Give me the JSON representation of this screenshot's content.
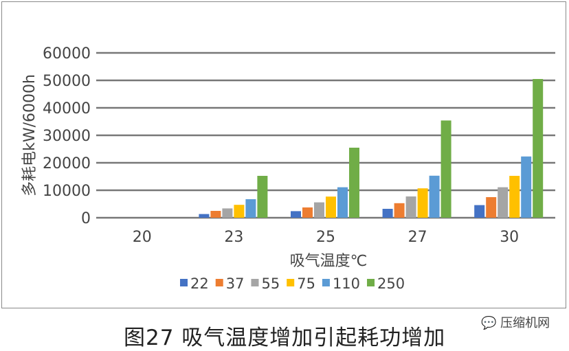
{
  "chart_data": {
    "type": "bar",
    "categories": [
      "20",
      "23",
      "25",
      "27",
      "30"
    ],
    "series": [
      {
        "name": "22",
        "color": "#4472c4",
        "values": [
          0,
          1350,
          2400,
          3250,
          4600
        ]
      },
      {
        "name": "37",
        "color": "#ed7d31",
        "values": [
          0,
          2500,
          3750,
          5300,
          7500
        ]
      },
      {
        "name": "55",
        "color": "#a5a5a5",
        "values": [
          0,
          3400,
          5600,
          7750,
          11100
        ]
      },
      {
        "name": "75",
        "color": "#ffc000",
        "values": [
          0,
          4700,
          7700,
          10700,
          15250
        ]
      },
      {
        "name": "110",
        "color": "#5b9bd5",
        "values": [
          0,
          6750,
          11100,
          15300,
          22300
        ]
      },
      {
        "name": "250",
        "color": "#70ad47",
        "values": [
          0,
          15250,
          25500,
          35400,
          50500
        ]
      }
    ],
    "yticks": [
      0,
      10000,
      20000,
      30000,
      40000,
      50000,
      60000
    ],
    "ylim": [
      0,
      60000
    ],
    "xlabel": "吸气温度℃",
    "ylabel": "多耗电kW/6000h",
    "grid": true,
    "legend": "bottom"
  },
  "caption": "图27 吸气温度增加引起耗功增加",
  "watermark": "压缩机网"
}
